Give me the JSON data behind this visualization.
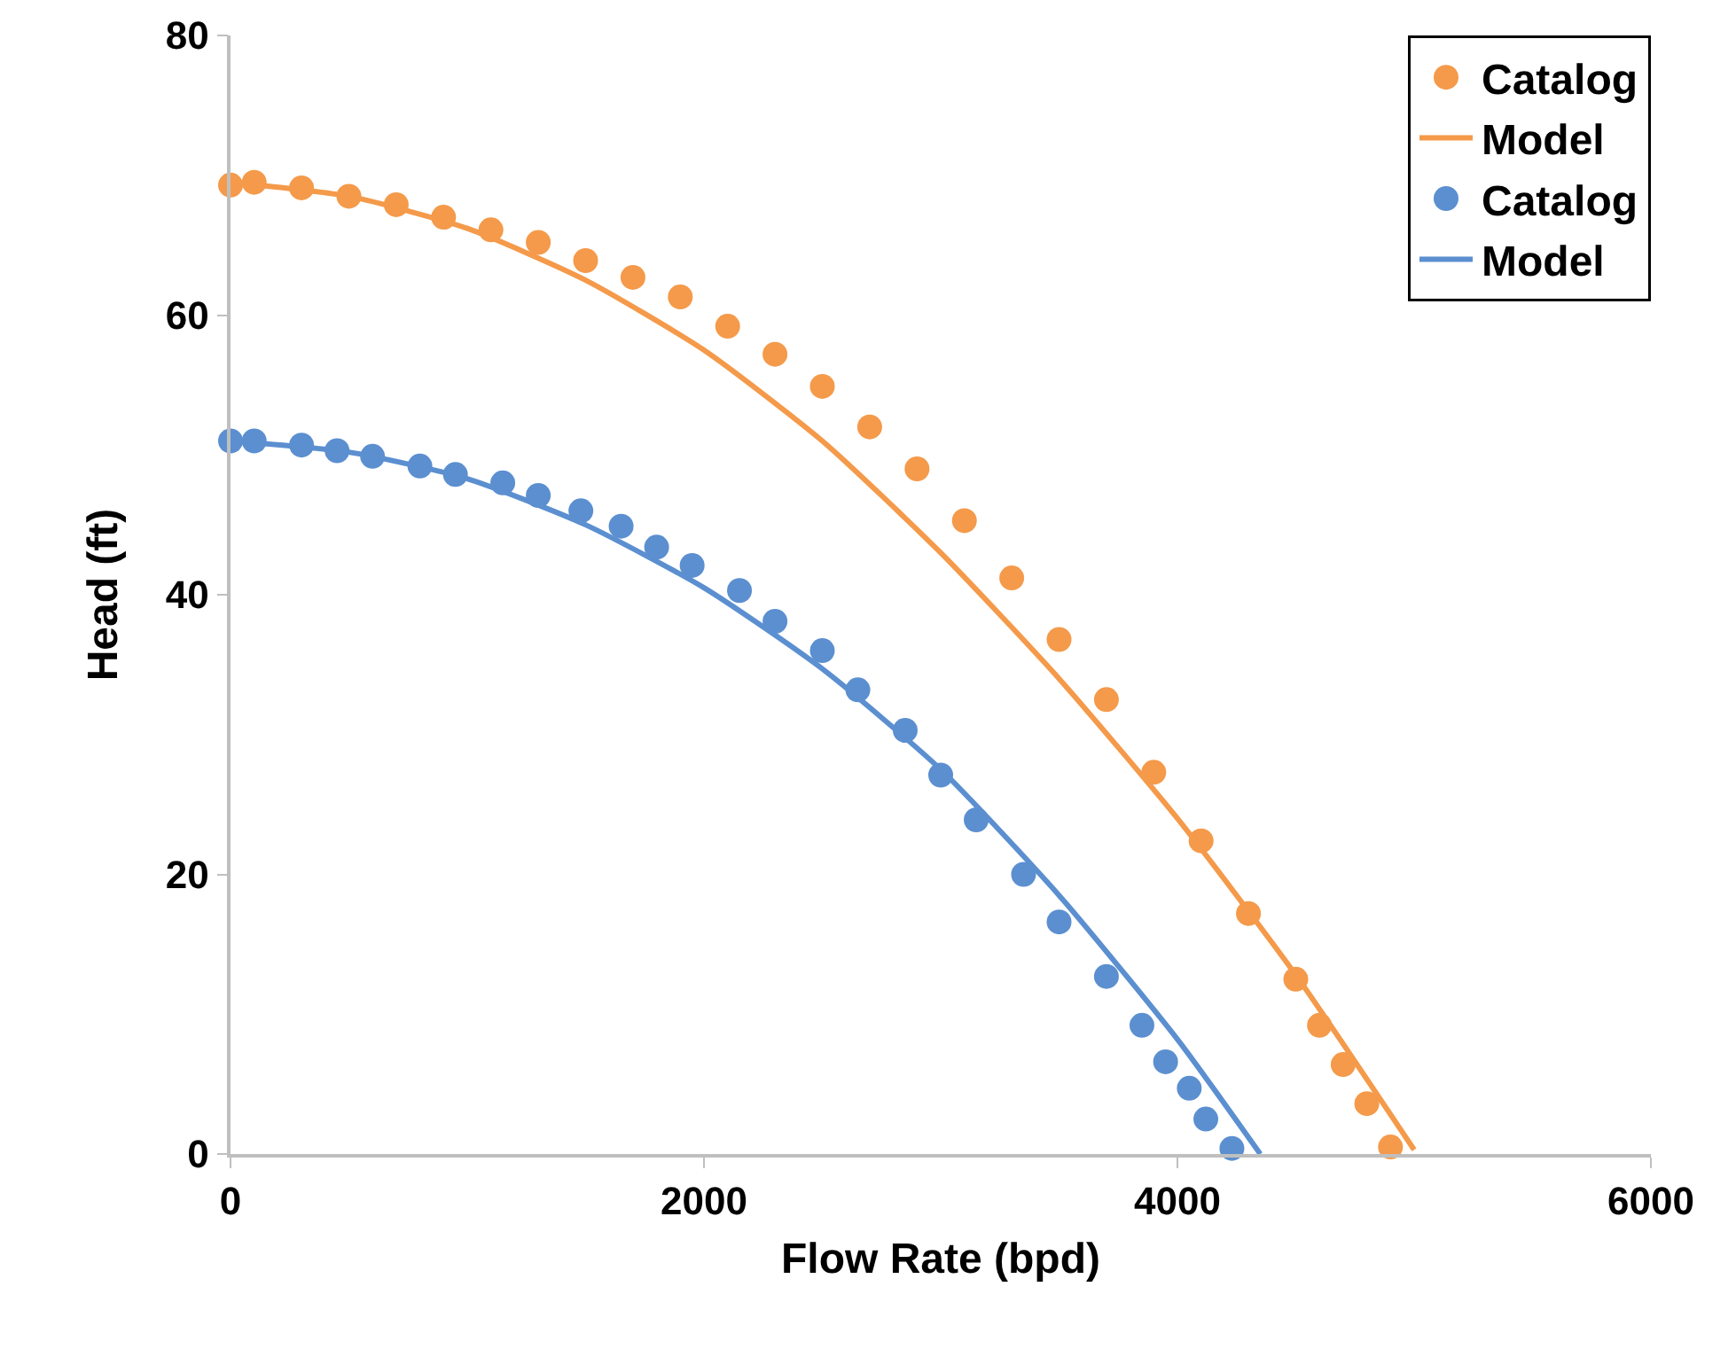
{
  "chart_data": {
    "type": "line",
    "xlabel": "Flow Rate (bpd)",
    "ylabel": "Head (ft)",
    "xlim": [
      0,
      6000
    ],
    "xticks": [
      0,
      2000,
      4000,
      6000
    ],
    "ylim": [
      0,
      80
    ],
    "yticks": [
      0,
      20,
      40,
      60,
      80
    ],
    "grid": false,
    "legend": "top right",
    "series": [
      {
        "name": "Catalog",
        "type": "scatter",
        "marker": "circle",
        "color": "#f49a4a",
        "x": [
          0,
          100,
          300,
          500,
          700,
          900,
          1100,
          1300,
          1500,
          1700,
          1900,
          2100,
          2300,
          2500,
          2700,
          2900,
          3100,
          3300,
          3500,
          3700,
          3900,
          4100,
          4300,
          4500,
          4600,
          4700,
          4800,
          4900
        ],
        "values": [
          69.3,
          69.5,
          69.1,
          68.5,
          67.9,
          67,
          66.1,
          65.2,
          63.9,
          62.7,
          61.3,
          59.2,
          57.2,
          54.9,
          52,
          49,
          45.3,
          41.2,
          36.8,
          32.5,
          27.3,
          22.4,
          17.2,
          12.5,
          9.2,
          6.4,
          3.6,
          0.5
        ]
      },
      {
        "name": "Model",
        "line_style": "solid",
        "color": "#f49a4a",
        "x": [
          0,
          500,
          1000,
          1500,
          2000,
          2500,
          3000,
          3500,
          4000,
          4500,
          5000
        ],
        "values": [
          69.5,
          68.5,
          66.2,
          62.5,
          57.5,
          51,
          43,
          34,
          24,
          12.8,
          0.3
        ]
      },
      {
        "name": "Catalog",
        "type": "scatter",
        "marker": "circle",
        "color": "#5b8fd0",
        "x": [
          0,
          100,
          300,
          450,
          600,
          800,
          950,
          1150,
          1300,
          1480,
          1650,
          1800,
          1950,
          2150,
          2300,
          2500,
          2650,
          2850,
          3000,
          3150,
          3350,
          3500,
          3700,
          3850,
          3950,
          4050,
          4120,
          4230
        ],
        "values": [
          51,
          51,
          50.7,
          50.3,
          49.9,
          49.2,
          48.6,
          48,
          47.1,
          46,
          44.9,
          43.4,
          42.1,
          40.3,
          38.1,
          36,
          33.2,
          30.3,
          27.1,
          23.9,
          20,
          16.6,
          12.7,
          9.2,
          6.6,
          4.7,
          2.5,
          0.4
        ]
      },
      {
        "name": "Model",
        "line_style": "solid",
        "color": "#5b8fd0",
        "x": [
          0,
          500,
          1000,
          1500,
          2000,
          2500,
          3000,
          3500,
          4000,
          4350
        ],
        "values": [
          51,
          50.2,
          48.3,
          45,
          40.5,
          34.7,
          27.5,
          18.5,
          8.2,
          0
        ]
      }
    ]
  }
}
